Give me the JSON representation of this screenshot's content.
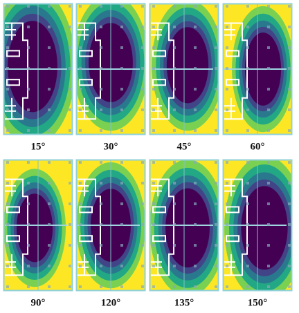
{
  "panels": [
    {
      "label": "15°"
    },
    {
      "label": "30°"
    },
    {
      "label": "45°"
    },
    {
      "label": "60°"
    },
    {
      "label": "90°"
    },
    {
      "label": "120°"
    },
    {
      "label": "135°"
    },
    {
      "label": "150°"
    }
  ]
}
